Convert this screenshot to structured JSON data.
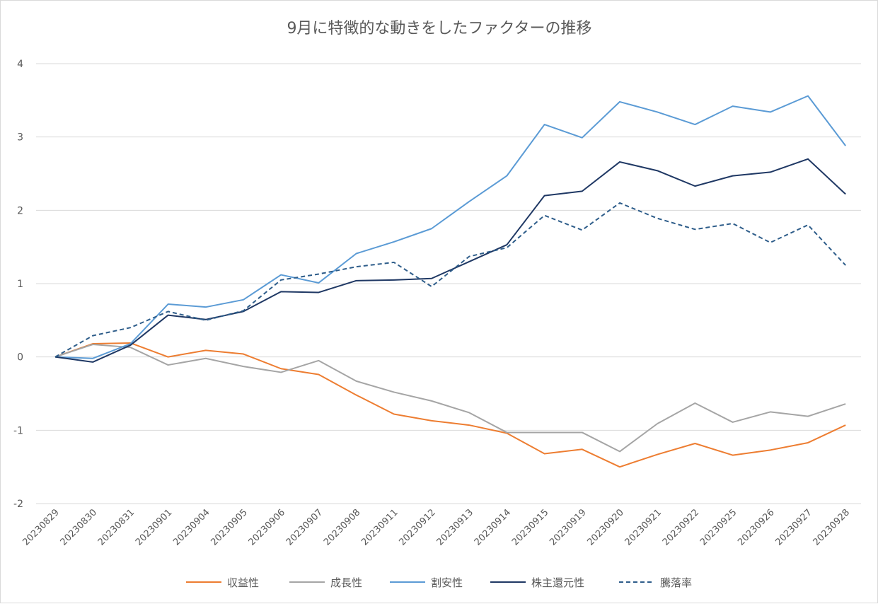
{
  "chart_data": {
    "type": "line",
    "title": "9月に特徴的な動きをしたファクターの推移",
    "xlabel": "",
    "ylabel": "",
    "ylim": [
      -2,
      4
    ],
    "yticks": [
      -2,
      -1,
      0,
      1,
      2,
      3,
      4
    ],
    "grid": true,
    "legend_position": "bottom",
    "x": [
      "20230829",
      "20230830",
      "20230831",
      "20230901",
      "20230904",
      "20230905",
      "20230906",
      "20230907",
      "20230908",
      "20230911",
      "20230912",
      "20230913",
      "20230914",
      "20230915",
      "20230919",
      "20230920",
      "20230921",
      "20230922",
      "20230925",
      "20230926",
      "20230927",
      "20230928"
    ],
    "series": [
      {
        "name": "収益性",
        "color": "#ed7d31",
        "dash": "solid",
        "values": [
          0,
          0.18,
          0.19,
          0.0,
          0.09,
          0.04,
          -0.16,
          -0.24,
          -0.52,
          -0.78,
          -0.87,
          -0.93,
          -1.04,
          -1.32,
          -1.26,
          -1.5,
          -1.33,
          -1.18,
          -1.34,
          -1.27,
          -1.17,
          -0.93
        ]
      },
      {
        "name": "成長性",
        "color": "#a5a5a5",
        "dash": "solid",
        "values": [
          0,
          0.17,
          0.13,
          -0.11,
          -0.02,
          -0.13,
          -0.21,
          -0.05,
          -0.33,
          -0.48,
          -0.6,
          -0.76,
          -1.03,
          -1.03,
          -1.03,
          -1.29,
          -0.91,
          -0.63,
          -0.89,
          -0.75,
          -0.81,
          -0.64
        ]
      },
      {
        "name": "割安性",
        "color": "#5b9bd5",
        "dash": "solid",
        "values": [
          0,
          -0.02,
          0.18,
          0.72,
          0.68,
          0.78,
          1.12,
          1.01,
          1.41,
          1.57,
          1.75,
          2.12,
          2.47,
          3.17,
          2.99,
          3.48,
          3.34,
          3.17,
          3.42,
          3.34,
          3.56,
          2.88
        ]
      },
      {
        "name": "株主還元性",
        "color": "#1f3864",
        "dash": "solid",
        "values": [
          0,
          -0.07,
          0.16,
          0.57,
          0.51,
          0.62,
          0.89,
          0.88,
          1.04,
          1.05,
          1.07,
          1.3,
          1.53,
          2.2,
          2.26,
          2.66,
          2.54,
          2.33,
          2.47,
          2.52,
          2.7,
          2.22
        ]
      },
      {
        "name": "騰落率",
        "color": "#2e5d8a",
        "dash": "dashed",
        "values": [
          0,
          0.29,
          0.4,
          0.62,
          0.5,
          0.63,
          1.05,
          1.13,
          1.23,
          1.29,
          0.96,
          1.37,
          1.49,
          1.93,
          1.73,
          2.1,
          1.89,
          1.74,
          1.82,
          1.56,
          1.8,
          1.25
        ]
      }
    ]
  }
}
